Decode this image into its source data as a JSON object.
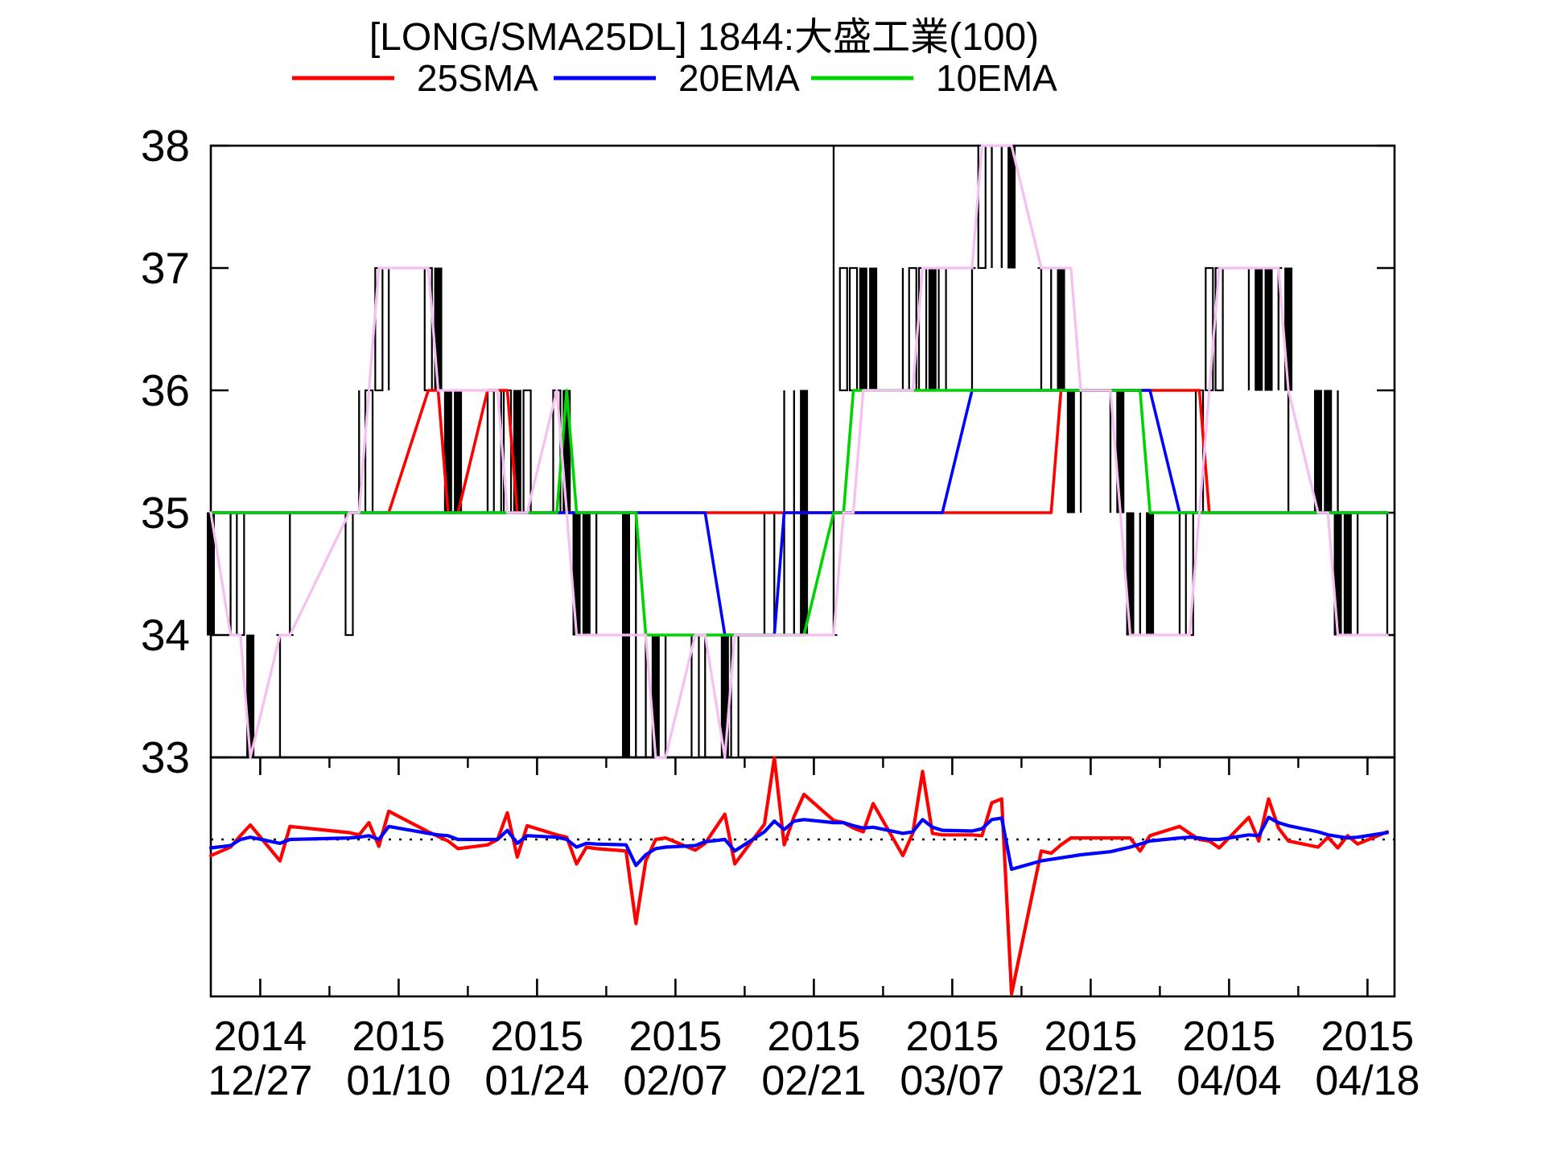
{
  "chart_data": {
    "type": "candlestick",
    "title": "[LONG/SMA25DL] 1844:大盛工業(100)",
    "legend": [
      {
        "label": "25SMA",
        "color": "#ff0000"
      },
      {
        "label": "20EMA",
        "color": "#0000ff"
      },
      {
        "label": "10EMA",
        "color": "#00d400"
      }
    ],
    "price_line_color": "#f6bef2",
    "candle_color": "#000000",
    "axis_color": "#000000",
    "main_panel": {
      "ylim": [
        33,
        38
      ],
      "yticks": [
        33,
        34,
        35,
        36,
        37,
        38
      ],
      "grid": false
    },
    "sub_panel": {
      "zero_line_style": "dotted",
      "ylim_units": [
        -2.05,
        1.07
      ]
    },
    "x_axis": {
      "major_labels": [
        {
          "day": 5,
          "line1": "2014",
          "line2": "12/27"
        },
        {
          "day": 19,
          "line1": "2015",
          "line2": "01/10"
        },
        {
          "day": 33,
          "line1": "2015",
          "line2": "01/24"
        },
        {
          "day": 47,
          "line1": "2015",
          "line2": "02/07"
        },
        {
          "day": 61,
          "line1": "2015",
          "line2": "02/21"
        },
        {
          "day": 75,
          "line1": "2015",
          "line2": "03/07"
        },
        {
          "day": 89,
          "line1": "2015",
          "line2": "03/21"
        },
        {
          "day": 103,
          "line1": "2015",
          "line2": "04/04"
        },
        {
          "day": 117,
          "line1": "2015",
          "line2": "04/18"
        }
      ],
      "minor_tick_days": [
        12,
        26,
        40,
        54,
        68,
        82,
        96,
        110
      ]
    },
    "days": [
      0,
      2,
      3,
      4,
      7,
      8,
      14,
      15,
      16,
      17,
      18,
      22,
      23,
      24,
      25,
      28,
      29,
      30,
      31,
      32,
      35,
      36,
      37,
      38,
      39,
      42,
      43,
      44,
      45,
      46,
      49,
      50,
      52,
      53,
      56,
      57,
      58,
      59,
      60,
      63,
      64,
      65,
      66,
      67,
      70,
      71,
      72,
      73,
      74,
      77,
      78,
      79,
      80,
      81,
      84,
      85,
      86,
      87,
      88,
      91,
      92,
      93,
      94,
      95,
      98,
      99,
      100,
      101,
      102,
      105,
      106,
      107,
      108,
      109,
      112,
      113,
      114,
      115,
      116,
      119
    ],
    "dates": [
      "12/22",
      "12/24",
      "12/25",
      "12/26",
      "12/29",
      "12/30",
      "01/05",
      "01/06",
      "01/07",
      "01/08",
      "01/09",
      "01/13",
      "01/14",
      "01/15",
      "01/16",
      "01/19",
      "01/20",
      "01/21",
      "01/22",
      "01/23",
      "01/26",
      "01/27",
      "01/28",
      "01/29",
      "01/30",
      "02/02",
      "02/03",
      "02/04",
      "02/05",
      "02/06",
      "02/09",
      "02/10",
      "02/12",
      "02/13",
      "02/16",
      "02/17",
      "02/18",
      "02/19",
      "02/20",
      "02/23",
      "02/24",
      "02/25",
      "02/26",
      "02/27",
      "03/02",
      "03/03",
      "03/04",
      "03/05",
      "03/06",
      "03/09",
      "03/10",
      "03/11",
      "03/12",
      "03/13",
      "03/16",
      "03/17",
      "03/18",
      "03/19",
      "03/20",
      "03/23",
      "03/24",
      "03/25",
      "03/26",
      "03/27",
      "03/30",
      "03/31",
      "04/01",
      "04/02",
      "04/03",
      "04/06",
      "04/07",
      "04/08",
      "04/09",
      "04/10",
      "04/13",
      "04/14",
      "04/15",
      "04/16",
      "04/17",
      "04/20"
    ],
    "ohlc": [
      [
        35,
        35,
        34,
        34
      ],
      [
        34,
        35,
        34,
        34
      ],
      [
        34,
        35,
        34,
        35
      ],
      [
        34,
        34,
        33,
        33
      ],
      [
        34,
        34,
        33,
        34
      ],
      [
        34,
        35,
        34,
        34
      ],
      [
        34,
        35,
        34,
        35
      ],
      [
        35,
        36,
        35,
        35
      ],
      [
        35,
        36,
        35,
        36
      ],
      [
        36,
        37,
        36,
        37
      ],
      [
        37,
        37,
        36,
        37
      ],
      [
        36,
        37,
        36,
        37
      ],
      [
        37,
        37,
        36,
        36
      ],
      [
        36,
        36,
        35,
        35
      ],
      [
        36,
        36,
        35,
        35
      ],
      [
        36,
        36,
        35,
        36
      ],
      [
        35,
        36,
        35,
        36
      ],
      [
        35,
        36,
        35,
        36
      ],
      [
        36,
        36,
        35,
        35
      ],
      [
        35,
        36,
        35,
        36
      ],
      [
        35,
        36,
        35,
        36
      ],
      [
        36,
        36,
        35,
        35
      ],
      [
        35,
        35,
        34,
        34
      ],
      [
        35,
        35,
        34,
        34
      ],
      [
        34,
        35,
        34,
        34
      ],
      [
        35,
        35,
        33,
        33
      ],
      [
        34,
        35,
        33,
        34
      ],
      [
        34,
        34,
        33,
        34
      ],
      [
        34,
        34,
        33,
        33
      ],
      [
        33,
        34,
        33,
        33
      ],
      [
        33,
        34,
        33,
        34
      ],
      [
        34,
        34,
        33,
        34
      ],
      [
        34,
        34,
        33,
        33
      ],
      [
        33,
        34,
        33,
        34
      ],
      [
        34,
        35,
        34,
        34
      ],
      [
        34,
        35,
        34,
        34
      ],
      [
        34,
        36,
        34,
        34
      ],
      [
        34,
        36,
        34,
        34
      ],
      [
        36,
        36,
        34,
        34
      ],
      [
        34,
        38,
        34,
        34
      ],
      [
        36,
        37,
        36,
        37
      ],
      [
        36,
        37,
        36,
        37
      ],
      [
        37,
        37,
        36,
        36
      ],
      [
        37,
        37,
        36,
        36
      ],
      [
        36,
        37,
        36,
        36
      ],
      [
        36,
        37,
        36,
        37
      ],
      [
        36,
        37,
        36,
        37
      ],
      [
        37,
        37,
        36,
        36
      ],
      [
        36,
        37,
        36,
        37
      ],
      [
        37,
        37,
        36,
        37
      ],
      [
        37,
        38,
        37,
        38
      ],
      [
        38,
        38,
        37,
        38
      ],
      [
        38,
        38,
        37,
        38
      ],
      [
        38,
        38,
        37,
        37
      ],
      [
        37,
        37,
        36,
        37
      ],
      [
        37,
        37,
        36,
        37
      ],
      [
        37,
        37,
        36,
        36
      ],
      [
        36,
        36,
        35,
        35
      ],
      [
        36,
        36,
        35,
        36
      ],
      [
        36,
        36,
        35,
        36
      ],
      [
        36,
        36,
        35,
        35
      ],
      [
        35,
        35,
        34,
        34
      ],
      [
        34,
        35,
        34,
        34
      ],
      [
        35,
        35,
        34,
        34
      ],
      [
        34,
        35,
        34,
        34
      ],
      [
        34,
        35,
        34,
        35
      ],
      [
        35,
        36,
        35,
        36
      ],
      [
        36,
        37,
        36,
        37
      ],
      [
        36,
        37,
        36,
        37
      ],
      [
        37,
        37,
        36,
        37
      ],
      [
        37,
        37,
        36,
        36
      ],
      [
        37,
        37,
        36,
        36
      ],
      [
        37,
        37,
        36,
        37
      ],
      [
        37,
        37,
        35,
        36
      ],
      [
        36,
        36,
        35,
        35
      ],
      [
        36,
        36,
        35,
        35
      ],
      [
        35,
        36,
        34,
        34
      ],
      [
        35,
        35,
        34,
        34
      ],
      [
        34,
        35,
        34,
        34
      ],
      [
        34,
        35,
        34,
        34
      ]
    ],
    "series": {
      "close": [
        35,
        34,
        34,
        33,
        34,
        34,
        35,
        35,
        36,
        37,
        37,
        37,
        36,
        36,
        36,
        36,
        36,
        35,
        35,
        35,
        36,
        35,
        34,
        34,
        34,
        34,
        34,
        34,
        33,
        33,
        34,
        34,
        33,
        34,
        34,
        34,
        34,
        34,
        34,
        34,
        35,
        35,
        36,
        36,
        36,
        36,
        37,
        37,
        37,
        37,
        38,
        38,
        38,
        38,
        37,
        37,
        37,
        37,
        36,
        36,
        35,
        34,
        34,
        34,
        34,
        34,
        35,
        36,
        37,
        37,
        37,
        37,
        37,
        36,
        35,
        35,
        34,
        34,
        34,
        34
      ],
      "sma25": [
        35,
        35,
        35,
        35,
        35,
        35,
        35,
        35,
        35,
        35,
        35,
        36,
        36,
        35,
        35,
        36,
        36,
        36,
        35,
        35,
        35,
        35,
        35,
        35,
        35,
        35,
        35,
        35,
        35,
        35,
        35,
        35,
        35,
        35,
        35,
        35,
        35,
        35,
        35,
        35,
        35,
        35,
        35,
        35,
        35,
        35,
        35,
        35,
        35,
        35,
        35,
        35,
        35,
        35,
        35,
        35,
        36,
        36,
        36,
        36,
        36,
        36,
        36,
        36,
        36,
        36,
        36,
        35,
        35,
        35,
        35,
        35,
        35,
        35,
        35,
        35,
        35,
        35,
        35,
        35
      ],
      "ema20": [
        35,
        35,
        35,
        35,
        35,
        35,
        35,
        35,
        35,
        35,
        35,
        35,
        35,
        35,
        35,
        35,
        35,
        35,
        35,
        35,
        35,
        35,
        35,
        35,
        35,
        35,
        35,
        35,
        35,
        35,
        35,
        35,
        34,
        34,
        34,
        34,
        35,
        35,
        35,
        35,
        35,
        35,
        35,
        35,
        35,
        35,
        35,
        35,
        35,
        36,
        36,
        36,
        36,
        36,
        36,
        36,
        36,
        36,
        36,
        36,
        36,
        36,
        36,
        36,
        35,
        35,
        35,
        35,
        35,
        35,
        35,
        35,
        35,
        35,
        35,
        35,
        35,
        35,
        35,
        35
      ],
      "ema10": [
        35,
        35,
        35,
        35,
        35,
        35,
        35,
        35,
        35,
        35,
        35,
        35,
        35,
        35,
        35,
        35,
        35,
        35,
        35,
        35,
        35,
        36,
        35,
        35,
        35,
        35,
        35,
        34,
        34,
        34,
        34,
        34,
        34,
        34,
        34,
        34,
        34,
        34,
        34,
        35,
        35,
        36,
        36,
        36,
        36,
        36,
        36,
        36,
        36,
        36,
        36,
        36,
        36,
        36,
        36,
        36,
        36,
        36,
        36,
        36,
        36,
        36,
        36,
        35,
        35,
        35,
        35,
        35,
        35,
        35,
        35,
        35,
        35,
        35,
        35,
        35,
        35,
        35,
        35,
        35
      ]
    },
    "sub_series": {
      "red": [
        -0.21,
        -0.1,
        0.05,
        0.19,
        -0.28,
        0.17,
        0.09,
        0.06,
        0.22,
        -0.09,
        0.37,
        0.1,
        0.04,
        -0.02,
        -0.12,
        -0.07,
        0.0,
        0.35,
        -0.23,
        0.18,
        0.06,
        0.03,
        -0.32,
        -0.1,
        -0.12,
        -0.15,
        -1.1,
        -0.28,
        0.0,
        0.02,
        -0.14,
        -0.05,
        0.33,
        -0.32,
        0.2,
        1.08,
        -0.07,
        0.3,
        0.59,
        0.25,
        0.22,
        0.15,
        0.1,
        0.47,
        -0.21,
        0.08,
        0.89,
        0.08,
        0.06,
        0.06,
        0.05,
        0.48,
        0.53,
        -2.02,
        -0.15,
        -0.18,
        -0.07,
        0.02,
        0.02,
        0.02,
        0.02,
        0.02,
        -0.15,
        0.05,
        0.17,
        0.08,
        0.0,
        -0.02,
        -0.11,
        0.29,
        -0.02,
        0.53,
        0.15,
        -0.02,
        -0.1,
        0.03,
        -0.11,
        0.05,
        -0.06,
        0.1
      ],
      "blue": [
        -0.11,
        -0.08,
        0.0,
        0.03,
        -0.05,
        0.0,
        0.02,
        0.03,
        0.05,
        0.0,
        0.17,
        0.08,
        0.06,
        0.05,
        0.0,
        0.0,
        0.0,
        0.12,
        -0.05,
        0.05,
        0.03,
        0.0,
        -0.1,
        -0.05,
        -0.06,
        -0.07,
        -0.34,
        -0.2,
        -0.12,
        -0.1,
        -0.08,
        -0.03,
        0.0,
        -0.15,
        0.1,
        0.24,
        0.13,
        0.24,
        0.26,
        0.22,
        0.22,
        0.18,
        0.15,
        0.16,
        0.08,
        0.1,
        0.26,
        0.16,
        0.12,
        0.11,
        0.14,
        0.26,
        0.28,
        -0.39,
        -0.28,
        -0.26,
        -0.24,
        -0.22,
        -0.2,
        -0.16,
        -0.13,
        -0.1,
        -0.06,
        -0.02,
        0.02,
        0.03,
        0.02,
        0.0,
        0.0,
        0.06,
        0.05,
        0.29,
        0.22,
        0.18,
        0.1,
        0.06,
        0.04,
        0.02,
        0.03,
        0.09
      ]
    }
  }
}
